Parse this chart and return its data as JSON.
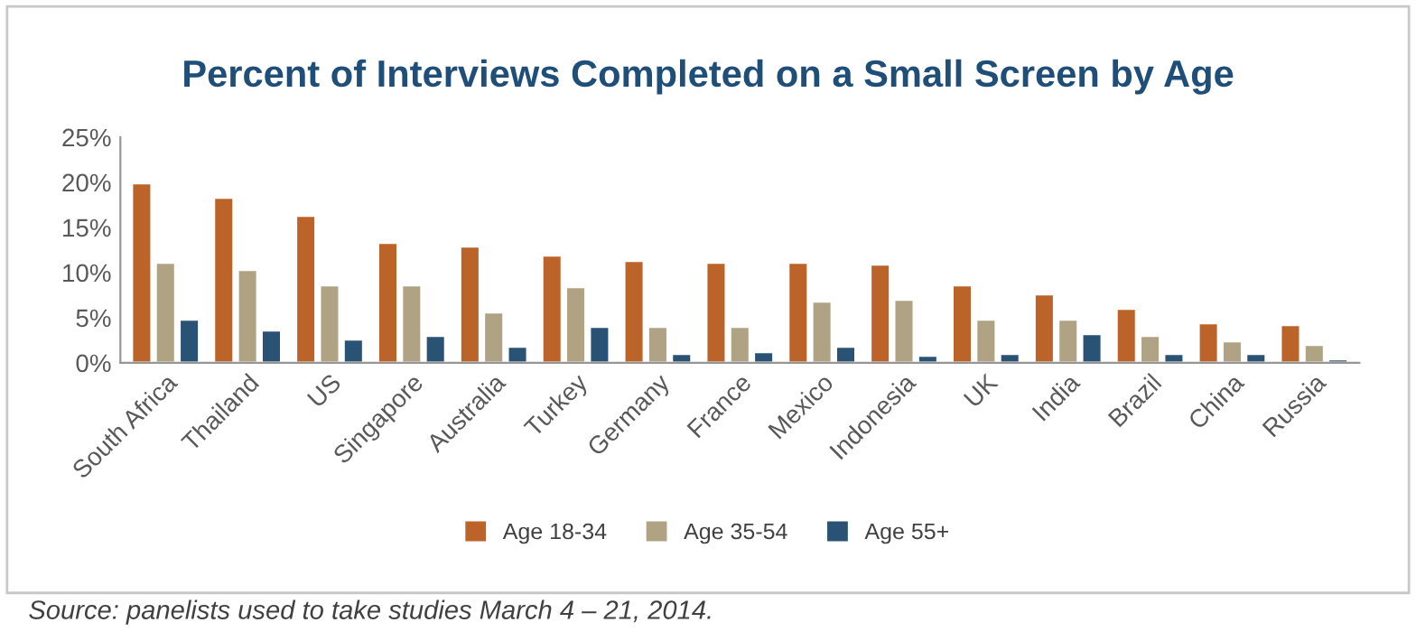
{
  "chart_data": {
    "type": "bar",
    "title": "Percent of Interviews Completed on a Small Screen by Age",
    "categories": [
      "South Africa",
      "Thailand",
      "US",
      "Singapore",
      "Australia",
      "Turkey",
      "Germany",
      "France",
      "Mexico",
      "Indonesia",
      "UK",
      "India",
      "Brazil",
      "China",
      "Russia"
    ],
    "series": [
      {
        "name": "Age 18-34",
        "color": "#bc6329",
        "values": [
          19.9,
          18.3,
          16.3,
          13.3,
          12.9,
          11.9,
          11.3,
          11.1,
          11.1,
          10.9,
          8.6,
          7.6,
          6.0,
          4.4,
          4.2
        ]
      },
      {
        "name": "Age 35-54",
        "color": "#b0a383",
        "values": [
          11.1,
          10.3,
          8.6,
          8.6,
          5.6,
          8.4,
          4.0,
          4.0,
          6.8,
          7.0,
          4.8,
          4.8,
          3.0,
          2.4,
          2.0
        ]
      },
      {
        "name": "Age 55+",
        "color": "#2a5275",
        "values": [
          4.8,
          3.6,
          2.6,
          3.0,
          1.8,
          4.0,
          1.0,
          1.2,
          1.8,
          0.8,
          1.0,
          3.2,
          1.0,
          1.0,
          0.4
        ]
      }
    ],
    "ylim": [
      0,
      25
    ],
    "yticks": [
      {
        "value": 0,
        "label": "0%"
      },
      {
        "value": 5,
        "label": "5%"
      },
      {
        "value": 10,
        "label": "10%"
      },
      {
        "value": 15,
        "label": "15%"
      },
      {
        "value": 20,
        "label": "20%"
      },
      {
        "value": 25,
        "label": "25%"
      }
    ],
    "grid": false,
    "legend": "bottom",
    "annotations": [
      "Source: panelists used to take studies March 4 – 21, 2014."
    ]
  }
}
